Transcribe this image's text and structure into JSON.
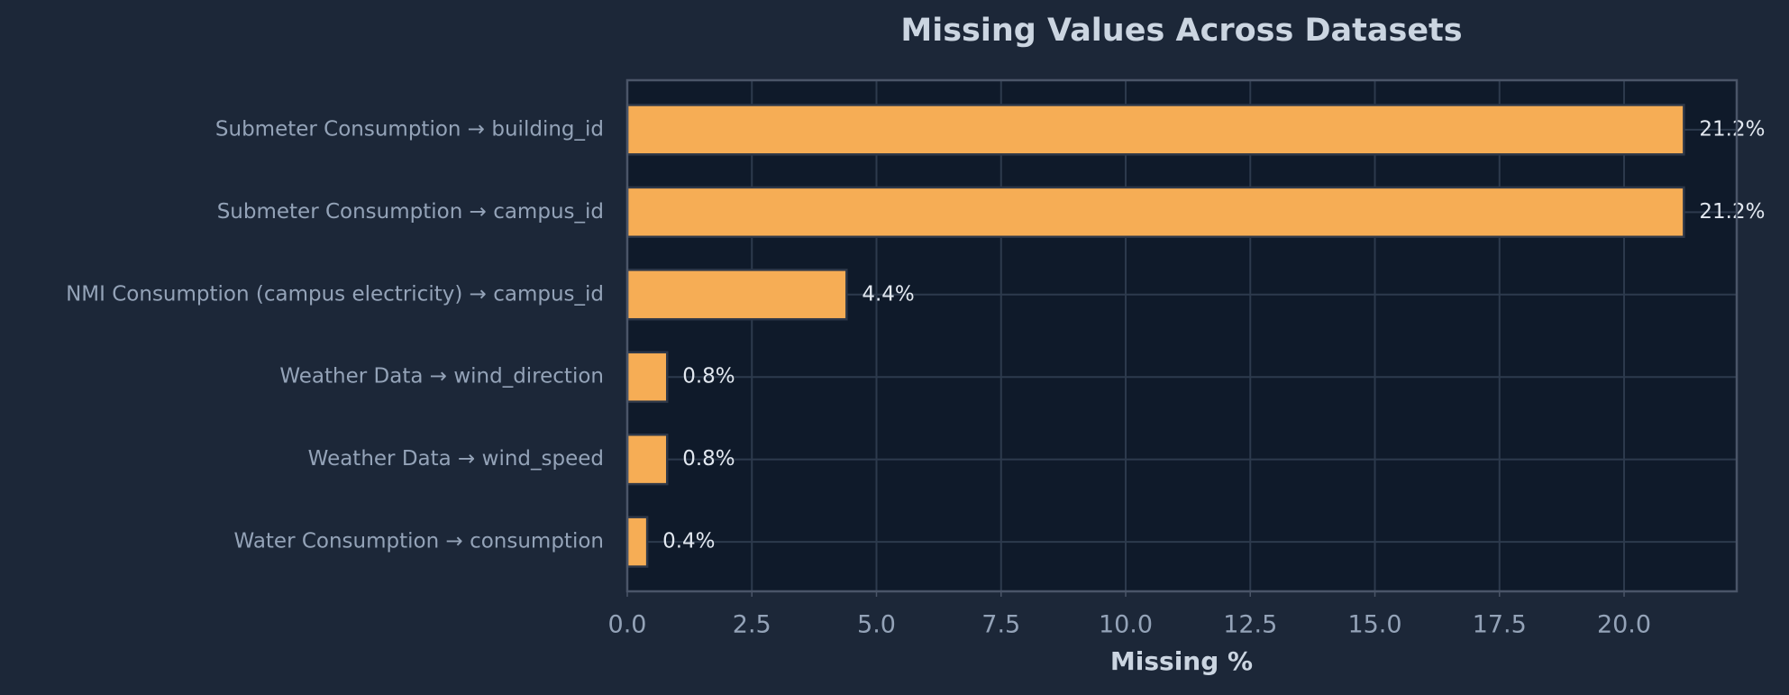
{
  "chart_data": {
    "type": "barh",
    "title": "Missing Values Across Datasets",
    "x_label": "Missing %",
    "categories": [
      "Submeter Consumption → building_id",
      "Submeter Consumption → campus_id",
      "NMI Consumption (campus electricity) → campus_id",
      "Weather Data → wind_direction",
      "Weather Data → wind_speed",
      "Water Consumption → consumption"
    ],
    "values": [
      21.2,
      21.2,
      4.4,
      0.8,
      0.8,
      0.4
    ],
    "value_labels": [
      "21.2%",
      "21.2%",
      "4.4%",
      "0.8%",
      "0.8%",
      "0.4%"
    ],
    "color": "#f6ad55",
    "xlim": [
      0,
      22.26
    ],
    "xticks": [
      {
        "value": 0,
        "label": "0.0"
      },
      2.5,
      {
        "value": 5,
        "label": "5.0"
      },
      7.5,
      {
        "value": 10,
        "label": "10.0"
      },
      12.5,
      {
        "value": 15,
        "label": "15.0"
      },
      17.5,
      {
        "value": 20,
        "label": "20.0"
      }
    ],
    "grid": true
  }
}
